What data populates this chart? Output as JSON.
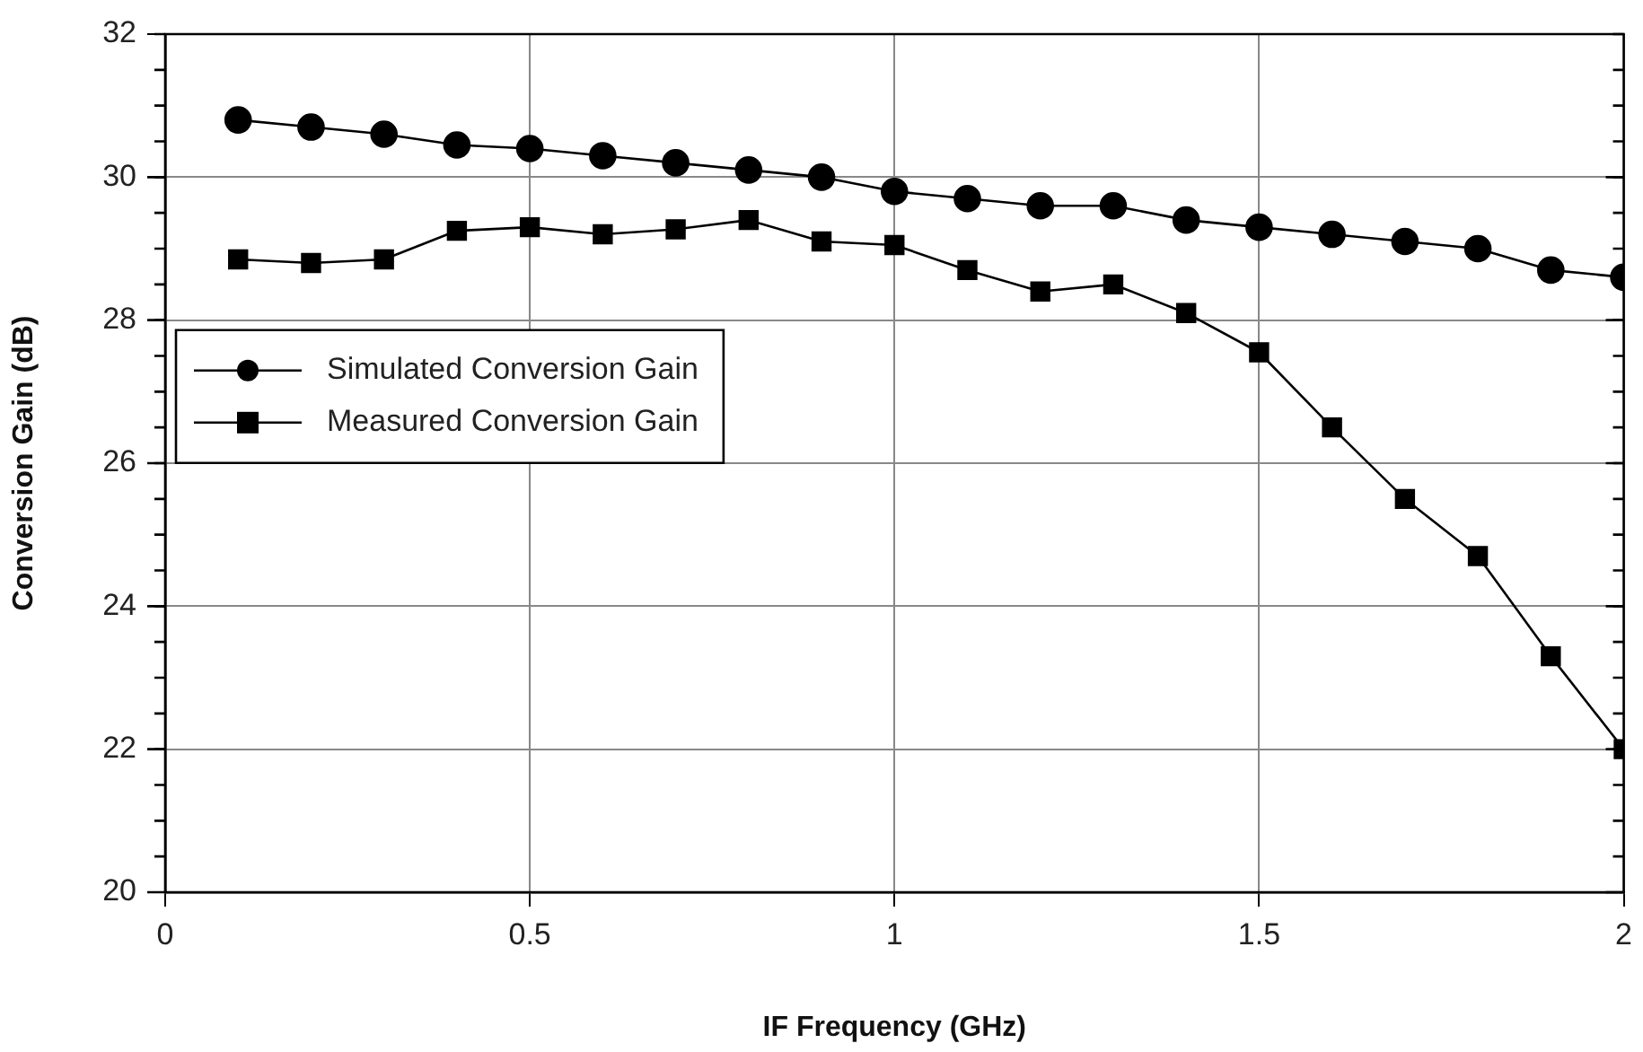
{
  "chart_data": {
    "type": "line",
    "xlabel": "IF Frequency (GHz)",
    "ylabel": "Conversion Gain (dB)",
    "xlim": [
      0,
      2
    ],
    "xticks": [
      0,
      0.5,
      1,
      1.5,
      2
    ],
    "ylim": [
      20,
      32
    ],
    "yticks": [
      20,
      22,
      24,
      26,
      28,
      30,
      32
    ],
    "grid": true,
    "legend": "left",
    "series": [
      {
        "name": "Simulated Conversion Gain",
        "color": "#000000",
        "marker": "circle",
        "x": [
          0.1,
          0.2,
          0.3,
          0.4,
          0.5,
          0.6,
          0.7,
          0.8,
          0.9,
          1.0,
          1.1,
          1.2,
          1.3,
          1.4,
          1.5,
          1.6,
          1.7,
          1.8,
          1.9,
          2.0
        ],
        "values": [
          30.8,
          30.7,
          30.6,
          30.45,
          30.4,
          30.3,
          30.2,
          30.1,
          30.0,
          29.8,
          29.7,
          29.6,
          29.6,
          29.4,
          29.3,
          29.2,
          29.1,
          29.0,
          28.7,
          28.6
        ]
      },
      {
        "name": "Measured Conversion Gain",
        "color": "#000000",
        "marker": "square",
        "x": [
          0.1,
          0.2,
          0.3,
          0.4,
          0.5,
          0.6,
          0.7,
          0.8,
          0.9,
          1.0,
          1.1,
          1.2,
          1.3,
          1.4,
          1.5,
          1.6,
          1.7,
          1.8,
          1.9,
          2.0
        ],
        "values": [
          28.85,
          28.8,
          28.85,
          29.25,
          29.3,
          29.2,
          29.27,
          29.4,
          29.1,
          29.05,
          28.7,
          28.4,
          28.5,
          28.1,
          27.55,
          26.5,
          25.5,
          24.7,
          23.3,
          22.0
        ]
      }
    ]
  }
}
